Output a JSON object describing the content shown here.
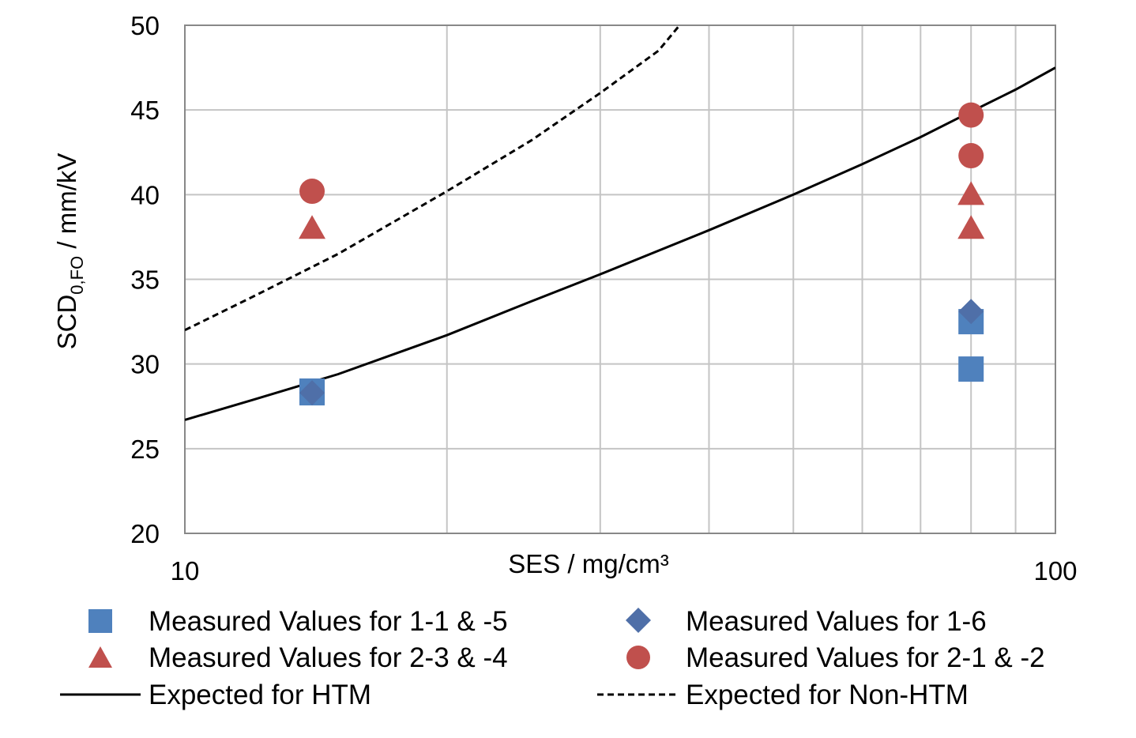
{
  "chart_data": {
    "type": "scatter",
    "title": "",
    "x_scale": "log",
    "xlim": [
      10,
      100
    ],
    "ylim": [
      20,
      50
    ],
    "xlabel": "SES / mg/cm³",
    "ylabel_main": "SCD",
    "ylabel_sub": "0,FO",
    "ylabel_rest": " / mm/kV",
    "x_ticks": [
      "10",
      "100"
    ],
    "y_ticks": [
      "20",
      "25",
      "30",
      "35",
      "40",
      "45",
      "50"
    ],
    "grid": true,
    "colors": {
      "square": "#4f81bd",
      "diamond": "#4f6fa8",
      "red": "#c0504d",
      "line": "#000000"
    },
    "series": [
      {
        "name": "Measured Values for 1-1 & -5",
        "marker": "square",
        "x": [
          14,
          14,
          80,
          80
        ],
        "y": [
          28.3,
          28.4,
          32.5,
          29.7
        ]
      },
      {
        "name": "Measured Values for 1-6",
        "marker": "diamond",
        "x": [
          14,
          80
        ],
        "y": [
          28.3,
          33.1
        ]
      },
      {
        "name": "Measured Values for 2-3 & -4",
        "marker": "triangle",
        "x": [
          14,
          80,
          80
        ],
        "y": [
          38,
          40,
          38
        ]
      },
      {
        "name": "Measured Values for 2-1 & -2",
        "marker": "circle",
        "x": [
          14,
          80,
          80
        ],
        "y": [
          40.2,
          44.7,
          42.3
        ]
      },
      {
        "name": "Expected for HTM",
        "style": "solid",
        "x": [
          10,
          12,
          15,
          20,
          25,
          30,
          40,
          50,
          60,
          70,
          80,
          90,
          100
        ],
        "y": [
          26.7,
          27.9,
          29.4,
          31.7,
          33.7,
          35.3,
          37.9,
          40.0,
          41.8,
          43.4,
          44.9,
          46.2,
          47.5
        ]
      },
      {
        "name": "Expected for Non-HTM",
        "style": "dashed",
        "x": [
          10,
          12,
          15,
          20,
          25,
          30,
          35,
          37
        ],
        "y": [
          32.0,
          34.0,
          36.5,
          40.2,
          43.2,
          46.0,
          48.5,
          50.0
        ]
      }
    ]
  }
}
